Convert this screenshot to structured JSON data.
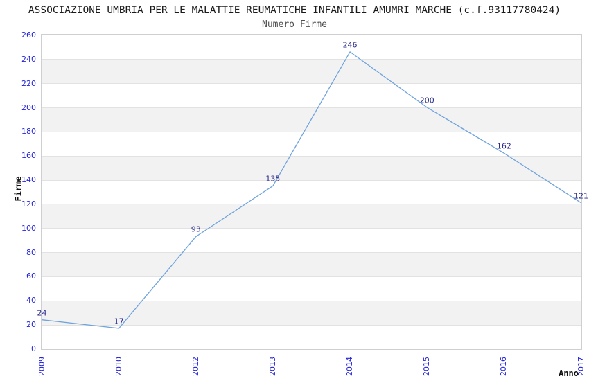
{
  "title": "ASSOCIAZIONE UMBRIA PER LE MALATTIE REUMATICHE INFANTILI AMUMRI MARCHE (c.f.93117780424)",
  "chart_data": {
    "type": "line",
    "title": "Numero Firme",
    "categories": [
      "2009",
      "2010",
      "2012",
      "2013",
      "2014",
      "2015",
      "2016",
      "2017"
    ],
    "values": [
      24,
      17,
      93,
      135,
      246,
      200,
      162,
      121
    ],
    "xlabel": "Anno",
    "ylabel": "Firme",
    "ylim": [
      0,
      260
    ],
    "ytick_step": 20,
    "grid": "horizontal-alternating-bands",
    "legend_position": "none",
    "colors": {
      "line": "#6fa3dc",
      "tick_label": "#2222dd",
      "data_label": "#2a2a8f",
      "band_gray": "#f2f2f2",
      "gridline": "#e2e2e2",
      "plot_border": "#cfcfcf",
      "title": "#1a1a1a",
      "subtitle": "#4d4d4d"
    }
  }
}
